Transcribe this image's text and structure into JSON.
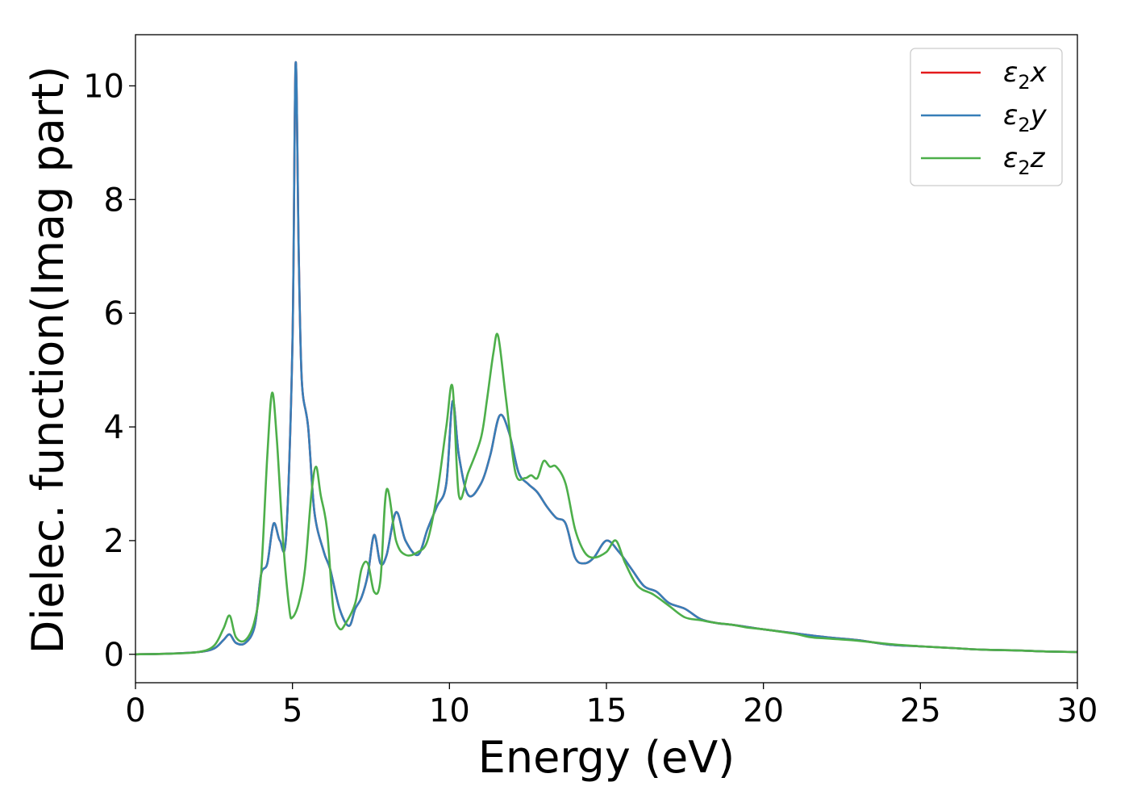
{
  "chart_data": {
    "type": "line",
    "xlabel": "Energy (eV)",
    "ylabel": "Dielec. function(Imag part)",
    "xlim": [
      0,
      30
    ],
    "ylim": [
      -0.5,
      10.9
    ],
    "xticks": [
      "0",
      "5",
      "10",
      "15",
      "20",
      "25",
      "30"
    ],
    "yticks": [
      "0",
      "2",
      "4",
      "6",
      "8",
      "10"
    ],
    "grid": false,
    "legend_position": "top-right",
    "colors": {
      "x": "#e41a1c",
      "y": "#377eb8",
      "z": "#4daf4a"
    },
    "series": [
      {
        "name": "ε2x",
        "legend": {
          "symbol": "ε",
          "sub": "2",
          "letter": "x"
        },
        "x": [
          0,
          1,
          2,
          2.5,
          2.8,
          3.0,
          3.2,
          3.5,
          3.8,
          4.0,
          4.2,
          4.4,
          4.6,
          4.8,
          5.0,
          5.1,
          5.2,
          5.3,
          5.5,
          5.7,
          6.0,
          6.2,
          6.5,
          6.8,
          7.0,
          7.2,
          7.4,
          7.6,
          7.8,
          8.0,
          8.3,
          8.6,
          9.0,
          9.3,
          9.6,
          9.9,
          10.1,
          10.3,
          10.6,
          11.0,
          11.3,
          11.6,
          11.9,
          12.2,
          12.5,
          12.8,
          13.1,
          13.4,
          13.7,
          14.0,
          14.3,
          14.6,
          15.0,
          15.4,
          15.8,
          16.2,
          16.6,
          17.0,
          17.5,
          18.0,
          18.5,
          19.0,
          19.5,
          20.0,
          21.0,
          22.0,
          23.0,
          24.0,
          25.0,
          26.0,
          27.0,
          28.0,
          29.0,
          30.0
        ],
        "y": [
          0,
          0.01,
          0.04,
          0.1,
          0.25,
          0.35,
          0.2,
          0.2,
          0.5,
          1.4,
          1.6,
          2.3,
          2.0,
          2.1,
          5.5,
          10.4,
          7.0,
          4.8,
          4.0,
          2.5,
          1.8,
          1.5,
          0.8,
          0.5,
          0.8,
          1.0,
          1.4,
          2.1,
          1.6,
          1.75,
          2.5,
          2.0,
          1.75,
          2.2,
          2.6,
          3.0,
          4.45,
          3.5,
          2.8,
          3.0,
          3.5,
          4.2,
          3.9,
          3.2,
          3.0,
          2.85,
          2.6,
          2.4,
          2.3,
          1.7,
          1.6,
          1.7,
          2.0,
          1.8,
          1.5,
          1.2,
          1.1,
          0.9,
          0.8,
          0.62,
          0.55,
          0.52,
          0.48,
          0.44,
          0.37,
          0.3,
          0.25,
          0.17,
          0.14,
          0.11,
          0.08,
          0.07,
          0.05,
          0.04
        ]
      },
      {
        "name": "ε2y",
        "legend": {
          "symbol": "ε",
          "sub": "2",
          "letter": "y"
        },
        "x": [
          0,
          1,
          2,
          2.5,
          2.8,
          3.0,
          3.2,
          3.5,
          3.8,
          4.0,
          4.2,
          4.4,
          4.6,
          4.8,
          5.0,
          5.1,
          5.2,
          5.3,
          5.5,
          5.7,
          6.0,
          6.2,
          6.5,
          6.8,
          7.0,
          7.2,
          7.4,
          7.6,
          7.8,
          8.0,
          8.3,
          8.6,
          9.0,
          9.3,
          9.6,
          9.9,
          10.1,
          10.3,
          10.6,
          11.0,
          11.3,
          11.6,
          11.9,
          12.2,
          12.5,
          12.8,
          13.1,
          13.4,
          13.7,
          14.0,
          14.3,
          14.6,
          15.0,
          15.4,
          15.8,
          16.2,
          16.6,
          17.0,
          17.5,
          18.0,
          18.5,
          19.0,
          19.5,
          20.0,
          21.0,
          22.0,
          23.0,
          24.0,
          25.0,
          26.0,
          27.0,
          28.0,
          29.0,
          30.0
        ],
        "y": [
          0,
          0.01,
          0.04,
          0.1,
          0.25,
          0.35,
          0.2,
          0.2,
          0.5,
          1.4,
          1.6,
          2.3,
          2.0,
          2.1,
          5.5,
          10.4,
          7.0,
          4.8,
          4.0,
          2.5,
          1.8,
          1.5,
          0.8,
          0.5,
          0.8,
          1.0,
          1.4,
          2.1,
          1.6,
          1.75,
          2.5,
          2.0,
          1.75,
          2.2,
          2.6,
          3.0,
          4.45,
          3.5,
          2.8,
          3.0,
          3.5,
          4.2,
          3.9,
          3.2,
          3.0,
          2.85,
          2.6,
          2.4,
          2.3,
          1.7,
          1.6,
          1.7,
          2.0,
          1.8,
          1.5,
          1.2,
          1.1,
          0.9,
          0.8,
          0.62,
          0.55,
          0.52,
          0.48,
          0.44,
          0.37,
          0.3,
          0.25,
          0.17,
          0.14,
          0.11,
          0.08,
          0.07,
          0.05,
          0.04
        ]
      },
      {
        "name": "ε2z",
        "legend": {
          "symbol": "ε",
          "sub": "2",
          "letter": "z"
        },
        "x": [
          0,
          1,
          2,
          2.5,
          2.8,
          3.0,
          3.2,
          3.5,
          3.8,
          4.0,
          4.2,
          4.35,
          4.5,
          4.7,
          4.9,
          5.0,
          5.2,
          5.4,
          5.6,
          5.75,
          5.9,
          6.1,
          6.3,
          6.5,
          6.7,
          7.0,
          7.2,
          7.4,
          7.6,
          7.8,
          8.0,
          8.3,
          8.6,
          9.0,
          9.3,
          9.6,
          9.9,
          10.1,
          10.3,
          10.6,
          11.0,
          11.2,
          11.4,
          11.55,
          11.8,
          12.1,
          12.4,
          12.6,
          12.8,
          13.0,
          13.2,
          13.4,
          13.7,
          14.0,
          14.3,
          14.6,
          15.0,
          15.3,
          15.6,
          16.0,
          16.5,
          17.0,
          17.5,
          18.0,
          18.5,
          19.0,
          19.5,
          20.0,
          21.0,
          21.5,
          22.0,
          23.0,
          24.0,
          25.0,
          26.0,
          27.0,
          28.0,
          29.0,
          30.0
        ],
        "y": [
          0,
          0.01,
          0.04,
          0.15,
          0.45,
          0.68,
          0.3,
          0.25,
          0.6,
          1.4,
          3.5,
          4.6,
          3.8,
          2.0,
          0.8,
          0.65,
          0.9,
          1.5,
          2.8,
          3.3,
          2.8,
          2.2,
          0.8,
          0.45,
          0.55,
          0.9,
          1.5,
          1.6,
          1.1,
          1.3,
          2.9,
          2.0,
          1.75,
          1.8,
          2.0,
          2.8,
          4.0,
          4.7,
          2.8,
          3.2,
          3.8,
          4.5,
          5.3,
          5.6,
          4.5,
          3.2,
          3.1,
          3.15,
          3.1,
          3.4,
          3.3,
          3.3,
          3.0,
          2.2,
          1.8,
          1.7,
          1.8,
          2.0,
          1.6,
          1.2,
          1.05,
          0.85,
          0.65,
          0.6,
          0.55,
          0.52,
          0.47,
          0.44,
          0.36,
          0.3,
          0.28,
          0.24,
          0.18,
          0.14,
          0.11,
          0.08,
          0.07,
          0.05,
          0.04
        ]
      }
    ]
  }
}
